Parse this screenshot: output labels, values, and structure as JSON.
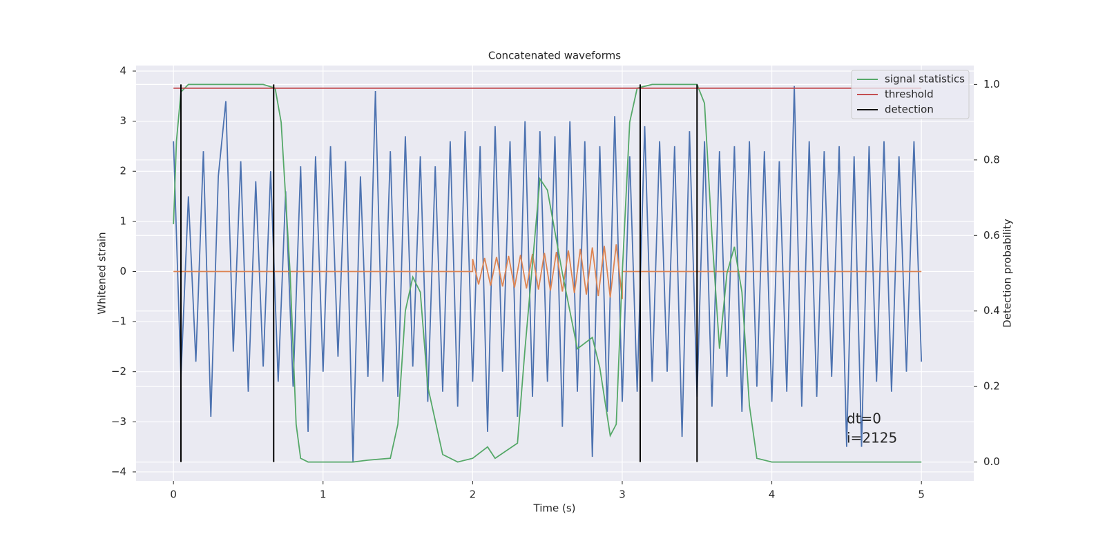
{
  "chart_data": {
    "type": "line",
    "title": "Concatenated waveforms",
    "xlabel": "Time (s)",
    "ylabel": "Whitened strain",
    "y2label": "Detection probability",
    "xlim": [
      -0.25,
      5.35
    ],
    "ylim": [
      -4.18,
      4.11
    ],
    "y2lim": [
      -0.05,
      1.05
    ],
    "xticks": [
      0,
      1,
      2,
      3,
      4,
      5
    ],
    "yticks": [
      {
        "value": -4,
        "label": "−4"
      },
      {
        "value": -3,
        "label": "−3"
      },
      {
        "value": -2,
        "label": "−2"
      },
      {
        "value": -1,
        "label": "−1"
      },
      0,
      1,
      2,
      3,
      4
    ],
    "y2ticks": [
      {
        "value": 0,
        "label": "0.0"
      },
      0.2,
      0.4,
      0.6,
      0.8,
      {
        "value": 1,
        "label": "1.0"
      }
    ],
    "grid": true,
    "legend": "upper right",
    "annotations": [
      "dt=0",
      "i=2125"
    ],
    "series": [
      {
        "color": "#4c72b0",
        "x": [
          0,
          0.05,
          0.1,
          0.15,
          0.2,
          0.25,
          0.3,
          0.35,
          0.4,
          0.45,
          0.5,
          0.55,
          0.6,
          0.65,
          0.7,
          0.75,
          0.8,
          0.85,
          0.9,
          0.95,
          1,
          1.05,
          1.1,
          1.15,
          1.2,
          1.25,
          1.3,
          1.35,
          1.4,
          1.45,
          1.5,
          1.55,
          1.6,
          1.65,
          1.7,
          1.75,
          1.8,
          1.85,
          1.9,
          1.95,
          2,
          2.05,
          2.1,
          2.15,
          2.2,
          2.25,
          2.3,
          2.35,
          2.4,
          2.45,
          2.5,
          2.55,
          2.6,
          2.65,
          2.7,
          2.75,
          2.8,
          2.85,
          2.9,
          2.95,
          3,
          3.05,
          3.1,
          3.15,
          3.2,
          3.25,
          3.3,
          3.35,
          3.4,
          3.45,
          3.5,
          3.55,
          3.6,
          3.65,
          3.7,
          3.75,
          3.8,
          3.85,
          3.9,
          3.95,
          4,
          4.05,
          4.1,
          4.15,
          4.2,
          4.25,
          4.3,
          4.35,
          4.4,
          4.45,
          4.5,
          4.55,
          4.6,
          4.65,
          4.7,
          4.75,
          4.8,
          4.85,
          4.9,
          4.95,
          5
        ],
        "values": [
          2.6,
          -2.1,
          1.5,
          -1.8,
          2.4,
          -2.9,
          1.9,
          3.4,
          -1.6,
          2.2,
          -2.4,
          1.8,
          -1.9,
          2.0,
          -2.2,
          1.6,
          -2.3,
          2.1,
          -3.2,
          2.3,
          -2.0,
          2.5,
          -1.7,
          2.2,
          -3.8,
          1.9,
          -2.1,
          3.6,
          -2.2,
          2.4,
          -2.5,
          2.7,
          -1.9,
          2.3,
          -2.6,
          2.1,
          -2.4,
          2.6,
          -2.7,
          2.8,
          -2.2,
          2.5,
          -3.2,
          2.9,
          -2.0,
          2.6,
          -2.9,
          3.0,
          -2.5,
          2.8,
          -2.2,
          2.7,
          -3.1,
          3.0,
          -2.4,
          2.6,
          -3.7,
          2.5,
          -2.8,
          3.1,
          -2.6,
          2.3,
          -2.4,
          2.9,
          -2.2,
          2.6,
          -2.0,
          2.5,
          -3.3,
          2.8,
          -2.5,
          2.6,
          -2.7,
          2.4,
          -2.1,
          2.5,
          -2.8,
          2.6,
          -2.3,
          2.4,
          -2.6,
          2.2,
          -2.4,
          3.7,
          -2.7,
          2.6,
          -2.5,
          2.4,
          -2.1,
          2.5,
          -3.5,
          2.3,
          -3.5,
          2.5,
          -2.2,
          2.6,
          -2.4,
          2.3,
          -2.0,
          2.6,
          -1.8
        ]
      },
      {
        "color": "#dd8452",
        "x": [
          0,
          2,
          2,
          2.04,
          2.08,
          2.12,
          2.16,
          2.2,
          2.24,
          2.28,
          2.32,
          2.36,
          2.4,
          2.44,
          2.48,
          2.52,
          2.56,
          2.6,
          2.64,
          2.68,
          2.72,
          2.76,
          2.8,
          2.84,
          2.88,
          2.92,
          2.96,
          3,
          3,
          5
        ],
        "values": [
          0,
          0,
          0.25,
          -0.26,
          0.27,
          -0.28,
          0.29,
          -0.3,
          0.31,
          -0.32,
          0.33,
          -0.34,
          0.35,
          -0.36,
          0.37,
          -0.38,
          0.39,
          -0.4,
          0.42,
          -0.43,
          0.45,
          -0.46,
          0.48,
          -0.49,
          0.51,
          -0.52,
          0.54,
          -0.55,
          0,
          0
        ]
      },
      {
        "name": "signal statistics",
        "color": "#55a868",
        "axis": "y2",
        "x": [
          0,
          0.02,
          0.05,
          0.1,
          0.6,
          0.68,
          0.72,
          0.78,
          0.82,
          0.85,
          0.9,
          1.2,
          1.3,
          1.45,
          1.5,
          1.55,
          1.6,
          1.65,
          1.7,
          1.8,
          1.9,
          2,
          2.1,
          2.15,
          2.3,
          2.35,
          2.45,
          2.5,
          2.6,
          2.7,
          2.8,
          2.85,
          2.92,
          2.96,
          3,
          3.05,
          3.1,
          3.2,
          3.5,
          3.55,
          3.6,
          3.65,
          3.7,
          3.75,
          3.8,
          3.85,
          3.9,
          4,
          5
        ],
        "values": [
          0.63,
          0.85,
          0.98,
          1,
          1,
          0.99,
          0.9,
          0.5,
          0.1,
          0.01,
          0,
          0,
          0.005,
          0.01,
          0.1,
          0.4,
          0.49,
          0.45,
          0.2,
          0.02,
          0,
          0.01,
          0.04,
          0.01,
          0.05,
          0.3,
          0.75,
          0.72,
          0.5,
          0.3,
          0.33,
          0.25,
          0.07,
          0.1,
          0.5,
          0.9,
          0.99,
          1,
          1,
          0.95,
          0.6,
          0.3,
          0.5,
          0.57,
          0.45,
          0.15,
          0.01,
          0,
          0
        ]
      },
      {
        "name": "threshold",
        "color": "#c44e52",
        "axis": "y2",
        "x": [
          0,
          5
        ],
        "values": [
          0.99,
          0.99
        ]
      },
      {
        "name": "detection",
        "color": "#000000",
        "axis": "y2",
        "mark": "vline",
        "x": [
          0.05,
          0.67,
          3.12,
          3.5
        ],
        "values": [
          1,
          1,
          1,
          1
        ]
      }
    ]
  }
}
